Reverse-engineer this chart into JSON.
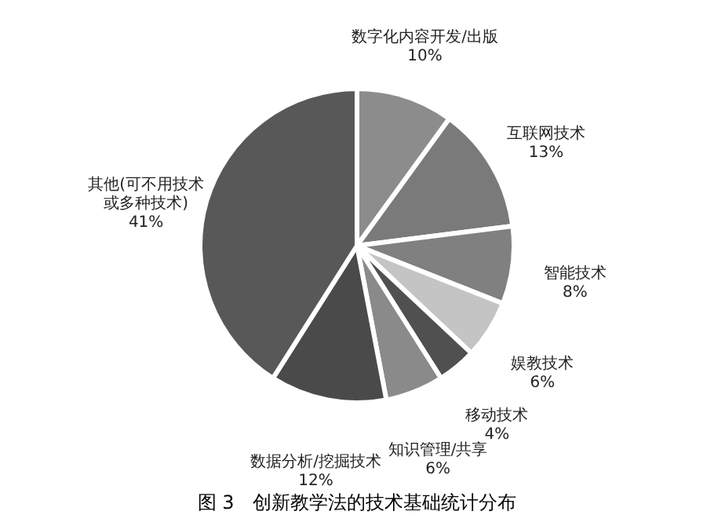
{
  "chart_data": {
    "type": "pie",
    "title": "图 3　创新教学法的技术基础统计分布",
    "categories": [
      "数字化内容开发/出版",
      "互联网技术",
      "智能技术",
      "娱教技术",
      "移动技术",
      "知识管理/共享",
      "数据分析/挖掘技术",
      "其他(可不用技术或多种技术)"
    ],
    "values": [
      10,
      13,
      8,
      6,
      4,
      6,
      12,
      41
    ],
    "value_labels": [
      "10%",
      "13%",
      "8%",
      "6%",
      "4%",
      "6%",
      "12%",
      "41%"
    ],
    "colors": [
      "#8c8c8c",
      "#7a7a7a",
      "#808080",
      "#c4c4c4",
      "#505050",
      "#8a8a8a",
      "#4a4a4a",
      "#585858"
    ],
    "legend": false
  }
}
